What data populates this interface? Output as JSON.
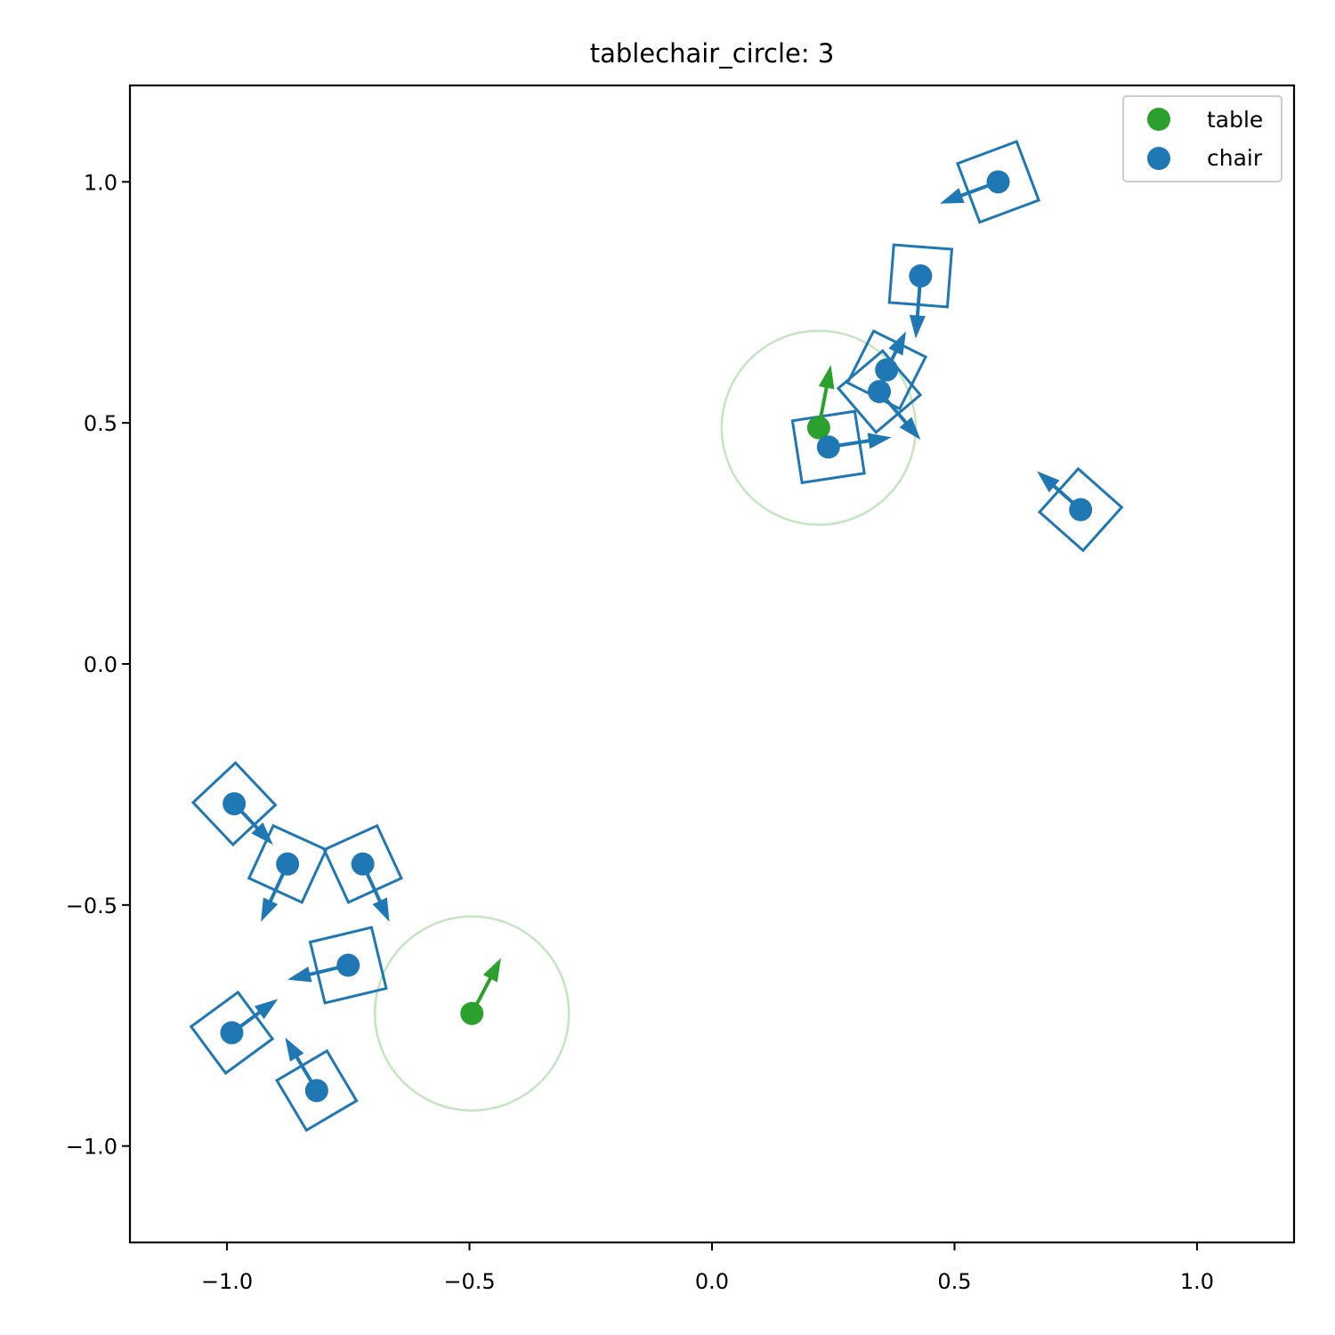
{
  "chart_data": {
    "type": "scatter",
    "title": "tablechair_circle: 3",
    "xlabel": "",
    "ylabel": "",
    "xlim": [
      -1.2,
      1.2
    ],
    "ylim": [
      -1.2,
      1.2
    ],
    "grid": false,
    "legend_position": "top-right",
    "x_ticks": [
      -1.0,
      -0.5,
      0.0,
      0.5,
      1.0
    ],
    "x_tick_labels": [
      "−1.0",
      "−0.5",
      "0.0",
      "0.5",
      "1.0"
    ],
    "y_ticks": [
      -1.0,
      -0.5,
      0.0,
      0.5,
      1.0
    ],
    "y_tick_labels": [
      "−1.0",
      "−0.5",
      "0.0",
      "0.5",
      "1.0"
    ],
    "series": [
      {
        "name": "table",
        "color": "#2ca02c",
        "circle_color": "#c3e5c0",
        "points": [
          {
            "x": 0.22,
            "y": 0.49,
            "dx": 0.025,
            "dy": 0.13,
            "radius": 0.2
          },
          {
            "x": -0.495,
            "y": -0.725,
            "dx": 0.06,
            "dy": 0.115,
            "radius": 0.2
          }
        ]
      },
      {
        "name": "chair",
        "color": "#1f77b4",
        "points": [
          {
            "x": 0.59,
            "y": 1.0,
            "dx": -0.12,
            "dy": -0.045,
            "size": 0.13
          },
          {
            "x": 0.43,
            "y": 0.805,
            "dx": -0.01,
            "dy": -0.13,
            "size": 0.12
          },
          {
            "x": 0.36,
            "y": 0.61,
            "dx": 0.04,
            "dy": 0.08,
            "size": 0.12
          },
          {
            "x": 0.345,
            "y": 0.565,
            "dx": 0.085,
            "dy": -0.1,
            "size": 0.12
          },
          {
            "x": 0.24,
            "y": 0.45,
            "dx": 0.13,
            "dy": 0.02,
            "size": 0.13
          },
          {
            "x": 0.76,
            "y": 0.32,
            "dx": -0.09,
            "dy": 0.08,
            "size": 0.12
          },
          {
            "x": -0.985,
            "y": -0.29,
            "dx": 0.08,
            "dy": -0.085,
            "size": 0.12
          },
          {
            "x": -0.875,
            "y": -0.415,
            "dx": -0.055,
            "dy": -0.12,
            "size": 0.12
          },
          {
            "x": -0.72,
            "y": -0.415,
            "dx": 0.055,
            "dy": -0.12,
            "size": 0.12
          },
          {
            "x": -0.75,
            "y": -0.625,
            "dx": -0.125,
            "dy": -0.03,
            "size": 0.13
          },
          {
            "x": -0.99,
            "y": -0.765,
            "dx": 0.095,
            "dy": 0.07,
            "size": 0.12
          },
          {
            "x": -0.815,
            "y": -0.885,
            "dx": -0.065,
            "dy": 0.11,
            "size": 0.12
          }
        ]
      }
    ]
  }
}
